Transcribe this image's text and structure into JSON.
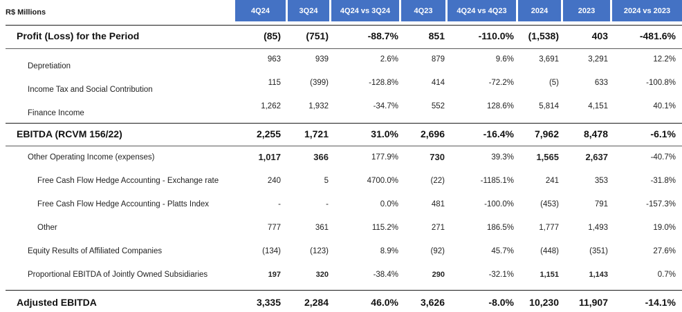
{
  "corner_label": "R$ Millions",
  "columns": [
    "4Q24",
    "3Q24",
    "4Q24 vs 3Q24",
    "4Q23",
    "4Q24 vs 4Q23",
    "2024",
    "2023",
    "2024 vs 2023"
  ],
  "rows": [
    {
      "label": "Profit (Loss) for the Period",
      "values": [
        "(85)",
        "(751)",
        "-88.7%",
        "851",
        "-110.0%",
        "(1,538)",
        "403",
        "-481.6%"
      ]
    },
    {
      "label": "Depretiation",
      "values": [
        "963",
        "939",
        "2.6%",
        "879",
        "9.6%",
        "3,691",
        "3,291",
        "12.2%"
      ]
    },
    {
      "label": "Income Tax and Social Contribution",
      "values": [
        "115",
        "(399)",
        "-128.8%",
        "414",
        "-72.2%",
        "(5)",
        "633",
        "-100.8%"
      ]
    },
    {
      "label": "Finance Income",
      "values": [
        "1,262",
        "1,932",
        "-34.7%",
        "552",
        "128.6%",
        "5,814",
        "4,151",
        "40.1%"
      ]
    },
    {
      "label": "EBITDA (RCVM 156/22)",
      "values": [
        "2,255",
        "1,721",
        "31.0%",
        "2,696",
        "-16.4%",
        "7,962",
        "8,478",
        "-6.1%"
      ]
    },
    {
      "label": "Other Operating Income (expenses)",
      "values": [
        "1,017",
        "366",
        "177.9%",
        "730",
        "39.3%",
        "1,565",
        "2,637",
        "-40.7%"
      ]
    },
    {
      "label": "Free Cash Flow Hedge Accounting - Exchange rate",
      "values": [
        "240",
        "5",
        "4700.0%",
        "(22)",
        "-1185.1%",
        "241",
        "353",
        "-31.8%"
      ]
    },
    {
      "label": "Free Cash Flow Hedge Accounting - Platts Index",
      "values": [
        "-",
        "-",
        "0.0%",
        "481",
        "-100.0%",
        "(453)",
        "791",
        "-157.3%"
      ]
    },
    {
      "label": "Other",
      "values": [
        "777",
        "361",
        "115.2%",
        "271",
        "186.5%",
        "1,777",
        "1,493",
        "19.0%"
      ]
    },
    {
      "label": "Equity Results of Affiliated Companies",
      "values": [
        "(134)",
        "(123)",
        "8.9%",
        "(92)",
        "45.7%",
        "(448)",
        "(351)",
        "27.6%"
      ]
    },
    {
      "label": "Proportional EBITDA of Jointly Owned Subsidiaries",
      "values": [
        "197",
        "320",
        "-38.4%",
        "290",
        "-32.1%",
        "1,151",
        "1,143",
        "0.7%"
      ]
    },
    {
      "label": "Adjusted EBITDA",
      "values": [
        "3,335",
        "2,284",
        "46.0%",
        "3,626",
        "-8.0%",
        "10,230",
        "11,907",
        "-14.1%"
      ]
    }
  ]
}
